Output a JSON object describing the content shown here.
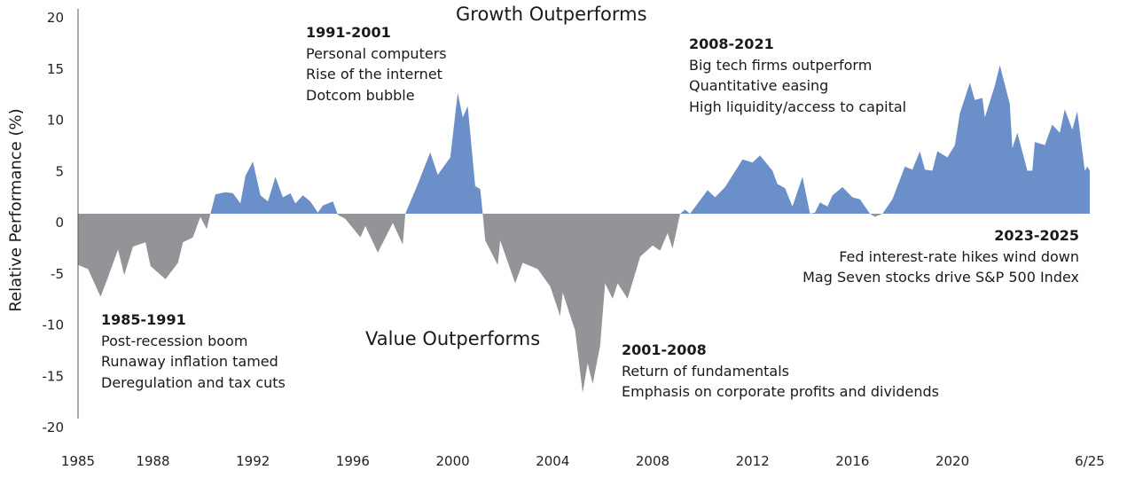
{
  "chart_data": {
    "type": "area",
    "ylabel": "Relative Performance (%)",
    "ylim": [
      -20,
      20
    ],
    "xlim": [
      1985,
      2025.5
    ],
    "yticks": [
      20,
      15,
      10,
      5,
      0,
      -5,
      -10,
      -15,
      -20
    ],
    "xticks": [
      {
        "value": 1985,
        "label": "1985"
      },
      {
        "value": 1988,
        "label": "1988"
      },
      {
        "value": 1992,
        "label": "1992"
      },
      {
        "value": 1996,
        "label": "1996"
      },
      {
        "value": 2000,
        "label": "2000"
      },
      {
        "value": 2004,
        "label": "2004"
      },
      {
        "value": 2008,
        "label": "2008"
      },
      {
        "value": 2012,
        "label": "2012"
      },
      {
        "value": 2016,
        "label": "2016"
      },
      {
        "value": 2020,
        "label": "2020"
      },
      {
        "value": 2025.5,
        "label": "6/25"
      }
    ],
    "grid": false,
    "colors": {
      "positive": "#6b8fc9",
      "negative": "#939497"
    },
    "series": [
      {
        "points": [
          [
            1985.0,
            -5.0
          ],
          [
            1985.4,
            -5.4
          ],
          [
            1985.9,
            -8.1
          ],
          [
            1986.2,
            -6.2
          ],
          [
            1986.6,
            -3.5
          ],
          [
            1986.85,
            -6.0
          ],
          [
            1987.2,
            -3.2
          ],
          [
            1987.7,
            -2.8
          ],
          [
            1987.9,
            -5.1
          ],
          [
            1988.5,
            -6.4
          ],
          [
            1989.0,
            -4.8
          ],
          [
            1989.2,
            -2.8
          ],
          [
            1989.6,
            -2.3
          ],
          [
            1989.9,
            -0.3
          ],
          [
            1990.15,
            -1.5
          ],
          [
            1990.3,
            0
          ],
          [
            1990.5,
            1.9
          ],
          [
            1990.9,
            2.1
          ],
          [
            1991.2,
            2.0
          ],
          [
            1991.5,
            1.0
          ],
          [
            1991.7,
            3.7
          ],
          [
            1992.0,
            5.1
          ],
          [
            1992.3,
            1.8
          ],
          [
            1992.6,
            1.2
          ],
          [
            1992.9,
            3.6
          ],
          [
            1993.2,
            1.6
          ],
          [
            1993.5,
            2.0
          ],
          [
            1993.7,
            1.0
          ],
          [
            1994.0,
            1.8
          ],
          [
            1994.3,
            1.2
          ],
          [
            1994.6,
            0.1
          ],
          [
            1994.8,
            0.8
          ],
          [
            1995.2,
            1.2
          ],
          [
            1995.4,
            -0.1
          ],
          [
            1995.7,
            -0.5
          ],
          [
            1996.3,
            -2.3
          ],
          [
            1996.5,
            -1.2
          ],
          [
            1997.0,
            -3.8
          ],
          [
            1997.6,
            -0.9
          ],
          [
            1998.0,
            -3.0
          ],
          [
            1998.1,
            0
          ],
          [
            1998.6,
            2.9
          ],
          [
            1999.1,
            6.0
          ],
          [
            1999.4,
            3.8
          ],
          [
            1999.9,
            5.5
          ],
          [
            2000.2,
            11.8
          ],
          [
            2000.4,
            9.4
          ],
          [
            2000.6,
            10.5
          ],
          [
            2000.9,
            2.7
          ],
          [
            2001.1,
            2.4
          ],
          [
            2001.2,
            0
          ],
          [
            2001.3,
            -2.6
          ],
          [
            2001.8,
            -5.0
          ],
          [
            2001.9,
            -2.6
          ],
          [
            2002.5,
            -6.8
          ],
          [
            2002.8,
            -4.8
          ],
          [
            2003.4,
            -5.4
          ],
          [
            2003.9,
            -7.1
          ],
          [
            2004.3,
            -10.0
          ],
          [
            2004.4,
            -7.7
          ],
          [
            2004.9,
            -11.4
          ],
          [
            2005.2,
            -17.5
          ],
          [
            2005.4,
            -14.6
          ],
          [
            2005.6,
            -16.6
          ],
          [
            2005.9,
            -12.9
          ],
          [
            2006.1,
            -6.8
          ],
          [
            2006.4,
            -8.3
          ],
          [
            2006.6,
            -6.8
          ],
          [
            2007.0,
            -8.3
          ],
          [
            2007.5,
            -4.2
          ],
          [
            2008.0,
            -3.1
          ],
          [
            2008.3,
            -3.6
          ],
          [
            2008.6,
            -1.9
          ],
          [
            2008.8,
            -3.4
          ],
          [
            2009.1,
            0
          ],
          [
            2009.3,
            0.4
          ],
          [
            2009.5,
            0
          ],
          [
            2010.2,
            2.3
          ],
          [
            2010.5,
            1.6
          ],
          [
            2010.9,
            2.6
          ],
          [
            2011.6,
            5.3
          ],
          [
            2012.0,
            5.0
          ],
          [
            2012.3,
            5.7
          ],
          [
            2012.8,
            4.2
          ],
          [
            2013.0,
            2.9
          ],
          [
            2013.3,
            2.5
          ],
          [
            2013.6,
            0.7
          ],
          [
            2014.0,
            3.6
          ],
          [
            2014.3,
            0
          ],
          [
            2014.5,
            0.1
          ],
          [
            2014.7,
            1.1
          ],
          [
            2015.0,
            0.7
          ],
          [
            2015.2,
            1.8
          ],
          [
            2015.6,
            2.6
          ],
          [
            2016.0,
            1.6
          ],
          [
            2016.3,
            1.4
          ],
          [
            2016.7,
            0
          ],
          [
            2016.9,
            -0.3
          ],
          [
            2017.2,
            0
          ],
          [
            2017.6,
            1.4
          ],
          [
            2018.1,
            4.6
          ],
          [
            2018.4,
            4.3
          ],
          [
            2018.7,
            6.1
          ],
          [
            2018.9,
            4.3
          ],
          [
            2019.2,
            4.2
          ],
          [
            2019.4,
            6.1
          ],
          [
            2019.8,
            5.5
          ],
          [
            2020.1,
            6.7
          ],
          [
            2020.3,
            9.8
          ],
          [
            2020.7,
            12.8
          ],
          [
            2020.9,
            11.1
          ],
          [
            2021.2,
            11.3
          ],
          [
            2021.3,
            9.4
          ],
          [
            2021.7,
            12.5
          ],
          [
            2021.9,
            14.5
          ],
          [
            2022.3,
            10.7
          ],
          [
            2022.4,
            6.4
          ],
          [
            2022.6,
            7.9
          ],
          [
            2023.0,
            4.2
          ],
          [
            2023.2,
            4.2
          ],
          [
            2023.3,
            7.0
          ],
          [
            2023.7,
            6.7
          ],
          [
            2024.0,
            8.7
          ],
          [
            2024.3,
            7.9
          ],
          [
            2024.5,
            10.2
          ],
          [
            2024.8,
            8.2
          ],
          [
            2025.0,
            10.0
          ],
          [
            2025.3,
            4.2
          ],
          [
            2025.4,
            4.6
          ],
          [
            2025.5,
            4.2
          ]
        ]
      }
    ],
    "annotations": {
      "growth_label": "Growth Outperforms",
      "value_label": "Value Outperforms",
      "a1985": {
        "period": "1985-1991",
        "lines": [
          "Post-recession boom",
          "Runaway inflation tamed",
          "Deregulation and tax cuts"
        ]
      },
      "a1991": {
        "period": "1991-2001",
        "lines": [
          "Personal computers",
          "Rise of the internet",
          "Dotcom bubble"
        ]
      },
      "a2001": {
        "period": "2001-2008",
        "lines": [
          "Return of fundamentals",
          "Emphasis on corporate profits and dividends"
        ]
      },
      "a2008": {
        "period": "2008-2021",
        "lines": [
          "Big tech firms outperform",
          "Quantitative easing",
          "High liquidity/access to capital"
        ]
      },
      "a2023": {
        "period": "2023-2025",
        "lines": [
          "Fed interest-rate hikes wind down",
          "Mag Seven stocks drive S&P 500 Index"
        ]
      }
    }
  }
}
